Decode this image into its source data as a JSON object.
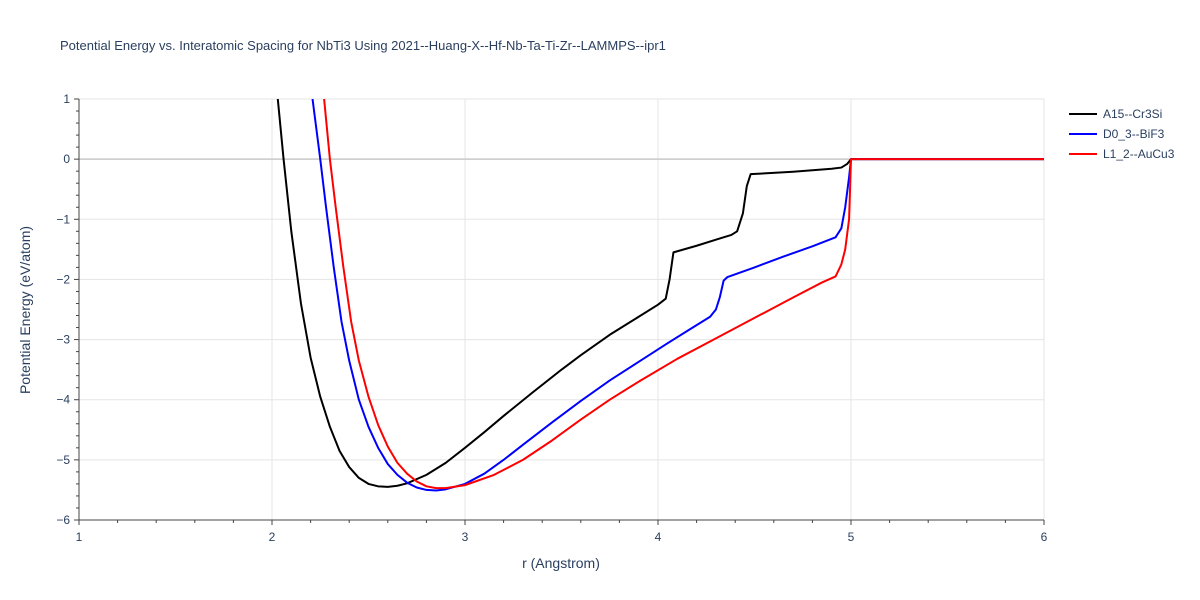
{
  "chart_data": {
    "type": "line",
    "title": "Potential Energy vs. Interatomic Spacing for NbTi3 Using 2021--Huang-X--Hf-Nb-Ta-Ti-Zr--LAMMPS--ipr1",
    "xlabel": "r (Angstrom)",
    "ylabel": "Potential Energy (eV/atom)",
    "xlim": [
      1,
      6
    ],
    "ylim": [
      -6,
      1
    ],
    "x_ticks": [
      1,
      2,
      3,
      4,
      5,
      6
    ],
    "y_ticks": [
      1,
      0,
      -1,
      -2,
      -3,
      -4,
      -5,
      -6
    ],
    "x_tick_labels": [
      "1",
      "2",
      "3",
      "4",
      "5",
      "6"
    ],
    "y_tick_labels": [
      "1",
      "0",
      "−1",
      "−2",
      "−3",
      "−4",
      "−5",
      "−6"
    ],
    "grid": true,
    "legend_position": "top-right",
    "series": [
      {
        "name": "A15--Cr3Si",
        "color": "#000000",
        "points": [
          [
            2.03,
            1.0
          ],
          [
            2.06,
            0.0
          ],
          [
            2.1,
            -1.2
          ],
          [
            2.15,
            -2.4
          ],
          [
            2.2,
            -3.3
          ],
          [
            2.25,
            -3.95
          ],
          [
            2.3,
            -4.45
          ],
          [
            2.35,
            -4.85
          ],
          [
            2.4,
            -5.12
          ],
          [
            2.45,
            -5.3
          ],
          [
            2.5,
            -5.4
          ],
          [
            2.55,
            -5.44
          ],
          [
            2.6,
            -5.45
          ],
          [
            2.65,
            -5.43
          ],
          [
            2.7,
            -5.39
          ],
          [
            2.8,
            -5.25
          ],
          [
            2.9,
            -5.05
          ],
          [
            3.0,
            -4.8
          ],
          [
            3.1,
            -4.54
          ],
          [
            3.2,
            -4.27
          ],
          [
            3.35,
            -3.88
          ],
          [
            3.5,
            -3.5
          ],
          [
            3.6,
            -3.26
          ],
          [
            3.75,
            -2.92
          ],
          [
            3.9,
            -2.62
          ],
          [
            4.0,
            -2.42
          ],
          [
            4.04,
            -2.32
          ],
          [
            4.06,
            -2.0
          ],
          [
            4.08,
            -1.55
          ],
          [
            4.2,
            -1.44
          ],
          [
            4.3,
            -1.34
          ],
          [
            4.38,
            -1.26
          ],
          [
            4.41,
            -1.2
          ],
          [
            4.44,
            -0.9
          ],
          [
            4.46,
            -0.45
          ],
          [
            4.48,
            -0.25
          ],
          [
            4.7,
            -0.21
          ],
          [
            4.9,
            -0.16
          ],
          [
            4.95,
            -0.14
          ],
          [
            4.98,
            -0.08
          ],
          [
            5.0,
            0.0
          ],
          [
            6.0,
            0.0
          ]
        ]
      },
      {
        "name": "D0_3--BiF3",
        "color": "#0000ff",
        "points": [
          [
            2.21,
            1.0
          ],
          [
            2.25,
            0.0
          ],
          [
            2.28,
            -0.8
          ],
          [
            2.32,
            -1.8
          ],
          [
            2.36,
            -2.7
          ],
          [
            2.4,
            -3.35
          ],
          [
            2.45,
            -4.0
          ],
          [
            2.5,
            -4.45
          ],
          [
            2.55,
            -4.8
          ],
          [
            2.6,
            -5.07
          ],
          [
            2.65,
            -5.25
          ],
          [
            2.7,
            -5.38
          ],
          [
            2.75,
            -5.46
          ],
          [
            2.8,
            -5.5
          ],
          [
            2.85,
            -5.51
          ],
          [
            2.9,
            -5.49
          ],
          [
            3.0,
            -5.4
          ],
          [
            3.1,
            -5.23
          ],
          [
            3.2,
            -5.0
          ],
          [
            3.3,
            -4.75
          ],
          [
            3.45,
            -4.38
          ],
          [
            3.6,
            -4.02
          ],
          [
            3.75,
            -3.68
          ],
          [
            3.9,
            -3.37
          ],
          [
            4.05,
            -3.06
          ],
          [
            4.15,
            -2.86
          ],
          [
            4.27,
            -2.62
          ],
          [
            4.3,
            -2.5
          ],
          [
            4.32,
            -2.3
          ],
          [
            4.34,
            -2.02
          ],
          [
            4.36,
            -1.96
          ],
          [
            4.5,
            -1.8
          ],
          [
            4.65,
            -1.62
          ],
          [
            4.8,
            -1.45
          ],
          [
            4.92,
            -1.3
          ],
          [
            4.95,
            -1.15
          ],
          [
            4.97,
            -0.8
          ],
          [
            4.99,
            -0.3
          ],
          [
            5.0,
            0.0
          ],
          [
            6.0,
            0.0
          ]
        ]
      },
      {
        "name": "L1_2--AuCu3",
        "color": "#ff0000",
        "points": [
          [
            2.27,
            1.0
          ],
          [
            2.3,
            0.0
          ],
          [
            2.33,
            -0.8
          ],
          [
            2.37,
            -1.8
          ],
          [
            2.41,
            -2.7
          ],
          [
            2.45,
            -3.35
          ],
          [
            2.5,
            -3.95
          ],
          [
            2.55,
            -4.42
          ],
          [
            2.6,
            -4.78
          ],
          [
            2.65,
            -5.05
          ],
          [
            2.7,
            -5.23
          ],
          [
            2.75,
            -5.36
          ],
          [
            2.8,
            -5.44
          ],
          [
            2.85,
            -5.47
          ],
          [
            2.9,
            -5.47
          ],
          [
            3.0,
            -5.42
          ],
          [
            3.15,
            -5.25
          ],
          [
            3.3,
            -5.0
          ],
          [
            3.45,
            -4.68
          ],
          [
            3.6,
            -4.33
          ],
          [
            3.75,
            -4.0
          ],
          [
            3.9,
            -3.7
          ],
          [
            4.1,
            -3.32
          ],
          [
            4.3,
            -2.98
          ],
          [
            4.5,
            -2.64
          ],
          [
            4.7,
            -2.3
          ],
          [
            4.85,
            -2.05
          ],
          [
            4.92,
            -1.95
          ],
          [
            4.95,
            -1.75
          ],
          [
            4.97,
            -1.5
          ],
          [
            4.99,
            -1.0
          ],
          [
            5.0,
            0.0
          ],
          [
            6.0,
            0.0
          ]
        ]
      }
    ]
  }
}
